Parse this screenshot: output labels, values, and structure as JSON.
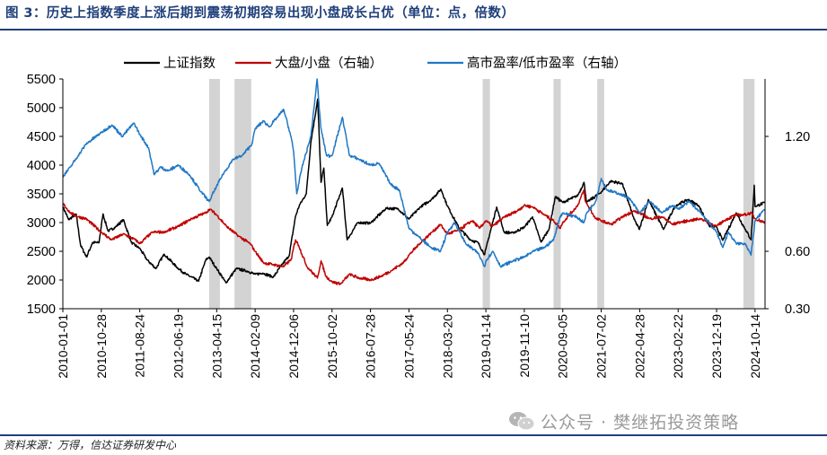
{
  "header": {
    "title": "图 3：历史上指数季度上涨后期到震荡初期容易出现小盘成长占优（单位：点，倍数）"
  },
  "footer": {
    "source": "资料来源：万得，信达证券研发中心",
    "watermark": "公众号 · 樊继拓投资策略",
    "watermark_icon": "wechat-icon"
  },
  "chart_data": {
    "type": "line",
    "x_axis_type": "date",
    "x_range": [
      "2010-01-01",
      "2024-12-31"
    ],
    "x_tick_labels": [
      "2010-01-01",
      "2010-10-28",
      "2011-08-24",
      "2012-06-19",
      "2013-04-15",
      "2014-02-09",
      "2014-12-06",
      "2015-10-02",
      "2016-07-28",
      "2017-05-24",
      "2018-03-20",
      "2019-01-14",
      "2019-11-10",
      "2020-09-05",
      "2021-07-02",
      "2022-04-28",
      "2023-02-22",
      "2023-12-19",
      "2024-10-14"
    ],
    "y_left": {
      "ylim": [
        1500,
        5500
      ],
      "ticks": [
        1500,
        2000,
        2500,
        3000,
        3500,
        4000,
        4500,
        5000,
        5500
      ]
    },
    "y_right": {
      "ylim": [
        0.3,
        1.5
      ],
      "ticks": [
        0.3,
        0.6,
        1.2
      ],
      "tick_labels": [
        "0.30",
        "0.60",
        "1.20"
      ]
    },
    "legend": {
      "placement": "top"
    },
    "shaded_periods": [
      [
        "2013-02-15",
        "2013-05-10"
      ],
      [
        "2013-09-01",
        "2014-01-10"
      ],
      [
        "2018-12-20",
        "2019-02-15"
      ],
      [
        "2020-06-25",
        "2020-08-20"
      ],
      [
        "2021-06-01",
        "2021-07-25"
      ],
      [
        "2024-07-15",
        "2024-10-10"
      ]
    ],
    "shade_color": "#d3d3d3",
    "series": [
      {
        "name": "上证指数",
        "axis": "left",
        "color": "#000000",
        "points": [
          [
            "2010-01-01",
            3277
          ],
          [
            "2010-02-15",
            3050
          ],
          [
            "2010-04-15",
            3150
          ],
          [
            "2010-05-20",
            2600
          ],
          [
            "2010-07-05",
            2400
          ],
          [
            "2010-08-20",
            2650
          ],
          [
            "2010-10-10",
            2650
          ],
          [
            "2010-11-10",
            3150
          ],
          [
            "2010-12-20",
            2850
          ],
          [
            "2011-02-15",
            2920
          ],
          [
            "2011-04-18",
            3050
          ],
          [
            "2011-06-20",
            2650
          ],
          [
            "2011-08-24",
            2550
          ],
          [
            "2011-10-20",
            2350
          ],
          [
            "2011-12-28",
            2200
          ],
          [
            "2012-03-01",
            2450
          ],
          [
            "2012-06-19",
            2200
          ],
          [
            "2012-08-20",
            2100
          ],
          [
            "2012-11-25",
            1980
          ],
          [
            "2013-01-20",
            2350
          ],
          [
            "2013-02-15",
            2400
          ],
          [
            "2013-04-15",
            2200
          ],
          [
            "2013-06-27",
            1950
          ],
          [
            "2013-09-15",
            2200
          ],
          [
            "2013-12-15",
            2150
          ],
          [
            "2014-02-09",
            2100
          ],
          [
            "2014-04-10",
            2120
          ],
          [
            "2014-07-01",
            2050
          ],
          [
            "2014-09-01",
            2250
          ],
          [
            "2014-11-01",
            2420
          ],
          [
            "2014-12-20",
            3100
          ],
          [
            "2015-01-20",
            3300
          ],
          [
            "2015-03-15",
            3500
          ],
          [
            "2015-04-20",
            4400
          ],
          [
            "2015-06-12",
            5150
          ],
          [
            "2015-07-08",
            3700
          ],
          [
            "2015-07-30",
            3950
          ],
          [
            "2015-08-26",
            2950
          ],
          [
            "2015-10-02",
            3100
          ],
          [
            "2015-12-22",
            3600
          ],
          [
            "2016-01-28",
            2700
          ],
          [
            "2016-04-20",
            3000
          ],
          [
            "2016-07-28",
            2990
          ],
          [
            "2016-11-28",
            3250
          ],
          [
            "2017-02-28",
            3240
          ],
          [
            "2017-05-24",
            3060
          ],
          [
            "2017-08-20",
            3270
          ],
          [
            "2017-11-15",
            3400
          ],
          [
            "2018-01-29",
            3580
          ],
          [
            "2018-03-20",
            3290
          ],
          [
            "2018-06-20",
            2900
          ],
          [
            "2018-09-15",
            2700
          ],
          [
            "2018-11-15",
            2650
          ],
          [
            "2019-01-04",
            2440
          ],
          [
            "2019-01-14",
            2540
          ],
          [
            "2019-04-08",
            3270
          ],
          [
            "2019-06-06",
            2830
          ],
          [
            "2019-08-15",
            2820
          ],
          [
            "2019-11-10",
            2920
          ],
          [
            "2020-01-13",
            3100
          ],
          [
            "2020-03-19",
            2660
          ],
          [
            "2020-05-20",
            2880
          ],
          [
            "2020-07-09",
            3450
          ],
          [
            "2020-09-05",
            3350
          ],
          [
            "2020-12-31",
            3470
          ],
          [
            "2021-02-18",
            3700
          ],
          [
            "2021-03-10",
            3350
          ],
          [
            "2021-07-02",
            3530
          ],
          [
            "2021-09-13",
            3720
          ],
          [
            "2021-12-13",
            3680
          ],
          [
            "2022-03-15",
            3060
          ],
          [
            "2022-04-26",
            2880
          ],
          [
            "2022-07-05",
            3400
          ],
          [
            "2022-10-31",
            2880
          ],
          [
            "2023-01-30",
            3290
          ],
          [
            "2023-05-09",
            3400
          ],
          [
            "2023-07-31",
            3300
          ],
          [
            "2023-10-23",
            2940
          ],
          [
            "2023-12-19",
            2920
          ],
          [
            "2024-02-05",
            2690
          ],
          [
            "2024-05-20",
            3170
          ],
          [
            "2024-07-31",
            2880
          ],
          [
            "2024-09-13",
            2700
          ],
          [
            "2024-10-08",
            3650
          ],
          [
            "2024-10-14",
            3280
          ],
          [
            "2024-12-31",
            3350
          ]
        ]
      },
      {
        "name": "大盘/小盘（右轴）",
        "axis": "right",
        "color": "#c00000",
        "points": [
          [
            "2010-01-01",
            0.85
          ],
          [
            "2010-03-01",
            0.8
          ],
          [
            "2010-05-01",
            0.78
          ],
          [
            "2010-07-01",
            0.77
          ],
          [
            "2010-10-28",
            0.7
          ],
          [
            "2011-01-15",
            0.66
          ],
          [
            "2011-04-20",
            0.69
          ],
          [
            "2011-07-20",
            0.66
          ],
          [
            "2011-08-24",
            0.64
          ],
          [
            "2011-12-01",
            0.7
          ],
          [
            "2012-03-01",
            0.7
          ],
          [
            "2012-06-19",
            0.73
          ],
          [
            "2012-10-01",
            0.77
          ],
          [
            "2013-01-15",
            0.8
          ],
          [
            "2013-02-20",
            0.82
          ],
          [
            "2013-04-15",
            0.79
          ],
          [
            "2013-07-01",
            0.73
          ],
          [
            "2013-10-01",
            0.68
          ],
          [
            "2014-01-01",
            0.64
          ],
          [
            "2014-02-09",
            0.6
          ],
          [
            "2014-04-15",
            0.54
          ],
          [
            "2014-07-01",
            0.53
          ],
          [
            "2014-09-20",
            0.52
          ],
          [
            "2014-11-20",
            0.56
          ],
          [
            "2014-12-06",
            0.62
          ],
          [
            "2014-12-22",
            0.66
          ],
          [
            "2015-01-15",
            0.63
          ],
          [
            "2015-03-20",
            0.52
          ],
          [
            "2015-06-10",
            0.46
          ],
          [
            "2015-07-08",
            0.55
          ],
          [
            "2015-08-15",
            0.47
          ],
          [
            "2015-10-02",
            0.44
          ],
          [
            "2015-12-10",
            0.43
          ],
          [
            "2016-02-15",
            0.48
          ],
          [
            "2016-05-01",
            0.46
          ],
          [
            "2016-07-28",
            0.45
          ],
          [
            "2016-10-20",
            0.47
          ],
          [
            "2017-01-10",
            0.5
          ],
          [
            "2017-04-10",
            0.54
          ],
          [
            "2017-05-24",
            0.58
          ],
          [
            "2017-08-15",
            0.64
          ],
          [
            "2017-11-20",
            0.7
          ],
          [
            "2018-01-25",
            0.74
          ],
          [
            "2018-03-20",
            0.69
          ],
          [
            "2018-06-15",
            0.71
          ],
          [
            "2018-09-30",
            0.76
          ],
          [
            "2018-11-25",
            0.72
          ],
          [
            "2019-01-14",
            0.76
          ],
          [
            "2019-03-05",
            0.73
          ],
          [
            "2019-06-10",
            0.78
          ],
          [
            "2019-09-15",
            0.81
          ],
          [
            "2019-11-10",
            0.84
          ],
          [
            "2020-01-20",
            0.83
          ],
          [
            "2020-04-15",
            0.79
          ],
          [
            "2020-06-25",
            0.76
          ],
          [
            "2020-08-15",
            0.72
          ],
          [
            "2020-09-05",
            0.75
          ],
          [
            "2020-12-31",
            0.84
          ],
          [
            "2021-02-18",
            0.92
          ],
          [
            "2021-02-28",
            0.86
          ],
          [
            "2021-05-20",
            0.77
          ],
          [
            "2021-07-02",
            0.76
          ],
          [
            "2021-09-20",
            0.74
          ],
          [
            "2021-12-15",
            0.78
          ],
          [
            "2022-03-10",
            0.81
          ],
          [
            "2022-04-28",
            0.8
          ],
          [
            "2022-07-15",
            0.77
          ],
          [
            "2022-10-20",
            0.78
          ],
          [
            "2023-01-10",
            0.74
          ],
          [
            "2023-02-22",
            0.75
          ],
          [
            "2023-05-20",
            0.76
          ],
          [
            "2023-08-20",
            0.77
          ],
          [
            "2023-12-19",
            0.73
          ],
          [
            "2024-02-15",
            0.76
          ],
          [
            "2024-05-15",
            0.79
          ],
          [
            "2024-07-15",
            0.79
          ],
          [
            "2024-09-15",
            0.8
          ],
          [
            "2024-10-14",
            0.77
          ],
          [
            "2024-12-31",
            0.75
          ]
        ]
      },
      {
        "name": "高市盈率/低市盈率（右轴）",
        "axis": "right",
        "color": "#1f77c4",
        "points": [
          [
            "2010-01-01",
            0.99
          ],
          [
            "2010-03-01",
            1.04
          ],
          [
            "2010-05-01",
            1.1
          ],
          [
            "2010-07-01",
            1.16
          ],
          [
            "2010-10-28",
            1.22
          ],
          [
            "2011-01-20",
            1.26
          ],
          [
            "2011-04-10",
            1.2
          ],
          [
            "2011-07-10",
            1.27
          ],
          [
            "2011-08-24",
            1.21
          ],
          [
            "2011-11-01",
            1.14
          ],
          [
            "2011-12-15",
            1.0
          ],
          [
            "2012-02-01",
            1.04
          ],
          [
            "2012-04-01",
            1.02
          ],
          [
            "2012-06-19",
            1.05
          ],
          [
            "2012-09-15",
            1.0
          ],
          [
            "2012-12-15",
            0.91
          ],
          [
            "2013-02-15",
            0.86
          ],
          [
            "2013-04-15",
            0.94
          ],
          [
            "2013-06-01",
            1.0
          ],
          [
            "2013-08-20",
            1.08
          ],
          [
            "2013-11-01",
            1.1
          ],
          [
            "2014-01-15",
            1.16
          ],
          [
            "2014-02-09",
            1.24
          ],
          [
            "2014-04-15",
            1.28
          ],
          [
            "2014-06-01",
            1.25
          ],
          [
            "2014-08-01",
            1.3
          ],
          [
            "2014-09-20",
            1.34
          ],
          [
            "2014-11-15",
            1.2
          ],
          [
            "2014-12-06",
            1.12
          ],
          [
            "2014-12-31",
            0.9
          ],
          [
            "2015-02-10",
            1.04
          ],
          [
            "2015-04-20",
            1.2
          ],
          [
            "2015-06-08",
            1.5
          ],
          [
            "2015-06-25",
            1.34
          ],
          [
            "2015-07-08",
            1.24
          ],
          [
            "2015-08-20",
            1.1
          ],
          [
            "2015-10-02",
            1.1
          ],
          [
            "2015-12-22",
            1.3
          ],
          [
            "2016-02-15",
            1.1
          ],
          [
            "2016-05-01",
            1.08
          ],
          [
            "2016-07-28",
            1.05
          ],
          [
            "2016-10-01",
            1.06
          ],
          [
            "2017-01-01",
            0.95
          ],
          [
            "2017-03-10",
            0.92
          ],
          [
            "2017-05-24",
            0.72
          ],
          [
            "2017-08-01",
            0.68
          ],
          [
            "2017-11-10",
            0.62
          ],
          [
            "2018-01-25",
            0.6
          ],
          [
            "2018-03-20",
            0.7
          ],
          [
            "2018-05-15",
            0.75
          ],
          [
            "2018-08-10",
            0.64
          ],
          [
            "2018-11-15",
            0.59
          ],
          [
            "2019-01-04",
            0.52
          ],
          [
            "2019-01-14",
            0.55
          ],
          [
            "2019-03-10",
            0.6
          ],
          [
            "2019-05-10",
            0.52
          ],
          [
            "2019-08-15",
            0.55
          ],
          [
            "2019-11-10",
            0.57
          ],
          [
            "2020-01-20",
            0.6
          ],
          [
            "2020-04-15",
            0.62
          ],
          [
            "2020-06-25",
            0.66
          ],
          [
            "2020-08-15",
            0.78
          ],
          [
            "2020-09-05",
            0.8
          ],
          [
            "2020-12-20",
            0.78
          ],
          [
            "2021-02-18",
            0.75
          ],
          [
            "2021-03-10",
            0.8
          ],
          [
            "2021-05-20",
            0.86
          ],
          [
            "2021-07-02",
            0.98
          ],
          [
            "2021-08-15",
            0.92
          ],
          [
            "2021-11-20",
            0.9
          ],
          [
            "2022-02-01",
            0.88
          ],
          [
            "2022-04-28",
            0.8
          ],
          [
            "2022-07-15",
            0.86
          ],
          [
            "2022-10-20",
            0.8
          ],
          [
            "2023-01-10",
            0.84
          ],
          [
            "2023-02-22",
            0.82
          ],
          [
            "2023-05-20",
            0.86
          ],
          [
            "2023-08-20",
            0.8
          ],
          [
            "2023-12-19",
            0.7
          ],
          [
            "2024-02-05",
            0.62
          ],
          [
            "2024-03-20",
            0.7
          ],
          [
            "2024-05-20",
            0.64
          ],
          [
            "2024-07-31",
            0.64
          ],
          [
            "2024-09-13",
            0.58
          ],
          [
            "2024-10-14",
            0.76
          ],
          [
            "2024-12-31",
            0.82
          ]
        ]
      }
    ]
  }
}
